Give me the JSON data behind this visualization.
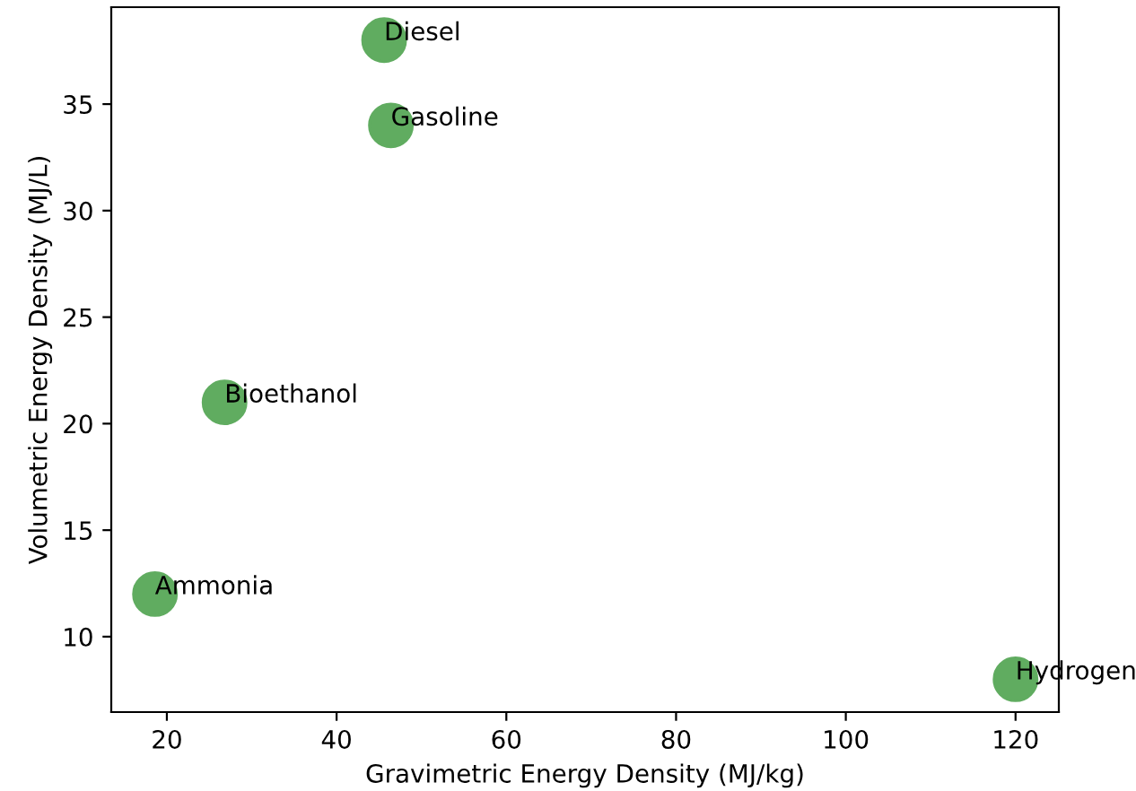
{
  "chart_data": {
    "type": "scatter",
    "xlabel": "Gravimetric Energy Density (MJ/kg)",
    "ylabel": "Volumetric Energy Density (MJ/L)",
    "x": [
      45.6,
      46.4,
      26.8,
      18.6,
      120
    ],
    "series": [
      {
        "color": "#60ac60",
        "values": [
          38,
          34,
          21,
          12,
          8
        ]
      }
    ],
    "annotations": [
      {
        "text": "Diesel",
        "x": 45.6,
        "y": 38
      },
      {
        "text": "Gasoline",
        "x": 46.4,
        "y": 34
      },
      {
        "text": "Bioethanol",
        "x": 26.8,
        "y": 21
      },
      {
        "text": "Ammonia",
        "x": 18.6,
        "y": 12
      },
      {
        "text": "Hydrogen",
        "x": 120,
        "y": 8
      }
    ],
    "xlim": [
      13.45,
      125.1
    ],
    "ylim": [
      6.46,
      39.55
    ],
    "xticks": [
      20,
      40,
      60,
      80,
      100,
      120
    ],
    "yticks": [
      10,
      15,
      20,
      25,
      30,
      35
    ],
    "marker": "circle",
    "grid": false
  }
}
